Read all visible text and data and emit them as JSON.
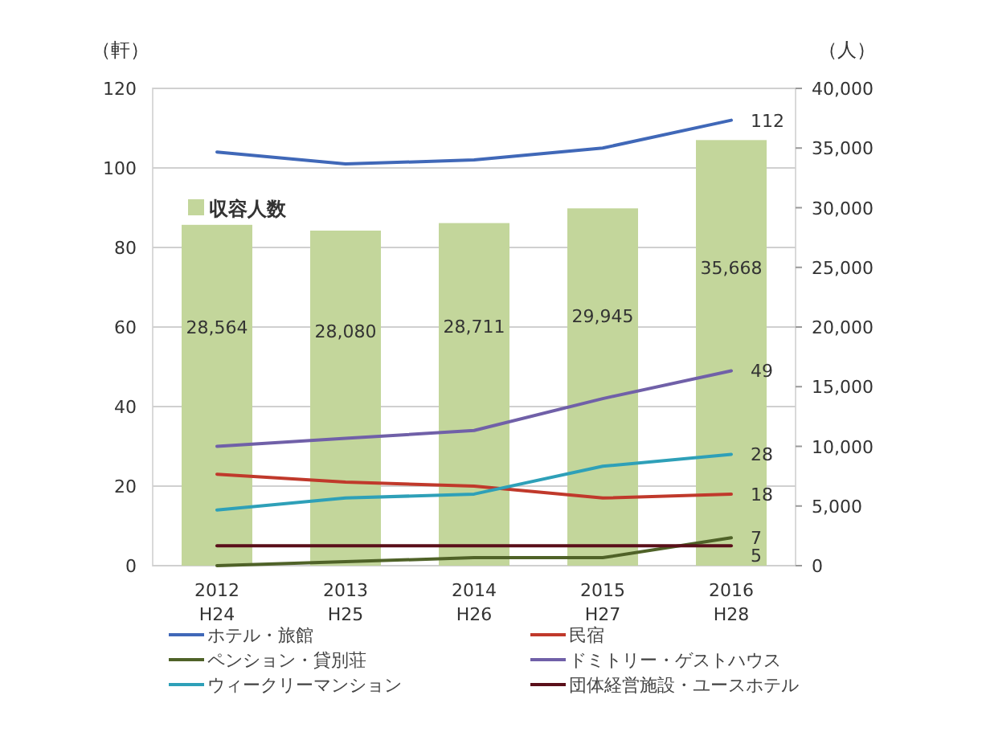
{
  "chart_data": {
    "type": "line",
    "categories": [
      "2012\nH24",
      "2013\nH25",
      "2014\nH26",
      "2015\nH27",
      "2016\nH28"
    ],
    "ylabel": "（軒）",
    "y2label": "（人）",
    "ylim": [
      0,
      120
    ],
    "yticks": [
      0,
      20,
      40,
      60,
      80,
      100,
      120
    ],
    "y2lim": [
      0,
      40000
    ],
    "y2ticks": [
      0,
      {
        "value": 5000,
        "label": "5,000"
      },
      {
        "value": 10000,
        "label": "10,000"
      },
      {
        "value": 15000,
        "label": "15,000"
      },
      {
        "value": 20000,
        "label": "20,000"
      },
      {
        "value": 25000,
        "label": "25,000"
      },
      {
        "value": 30000,
        "label": "30,000"
      },
      {
        "value": 35000,
        "label": "35,000"
      },
      {
        "value": 40000,
        "label": "40,000"
      }
    ],
    "grid": "y",
    "legend": "bottom",
    "series": [
      {
        "type": "bar",
        "axis": "y2",
        "name": "収容人数",
        "color": "#c3d69b",
        "values": [
          28564,
          28080,
          28711,
          29945,
          35668
        ],
        "value_labels": [
          "28,564",
          "28,080",
          "28,711",
          "29,945",
          "35,668"
        ]
      },
      {
        "name": "ホテル・旅館",
        "color": "#4068b8",
        "values": [
          104,
          101,
          102,
          105,
          112
        ],
        "value_labels": [
          null,
          null,
          null,
          null,
          "112"
        ]
      },
      {
        "name": "民宿",
        "color": "#c0392b",
        "values": [
          23,
          21,
          20,
          17,
          18
        ],
        "value_labels": [
          null,
          null,
          null,
          null,
          "18"
        ]
      },
      {
        "name": "ペンション・貸別荘",
        "color": "#4f6228",
        "values": [
          0,
          1,
          2,
          2,
          7
        ],
        "value_labels": [
          null,
          null,
          null,
          null,
          "7"
        ]
      },
      {
        "name": "ドミトリー・ゲストハウス",
        "color": "#7060a8",
        "values": [
          30,
          32,
          34,
          42,
          49
        ],
        "value_labels": [
          null,
          null,
          null,
          null,
          "49"
        ]
      },
      {
        "name": "ウィークリーマンション",
        "color": "#2ea0b8",
        "values": [
          14,
          17,
          18,
          25,
          28
        ],
        "value_labels": [
          null,
          null,
          null,
          null,
          "28"
        ]
      },
      {
        "name": "団体経営施設・ユースホテル",
        "color": "#5a0f1a",
        "values": [
          5,
          5,
          5,
          5,
          5
        ],
        "value_labels": [
          null,
          null,
          null,
          null,
          "5"
        ]
      }
    ]
  }
}
